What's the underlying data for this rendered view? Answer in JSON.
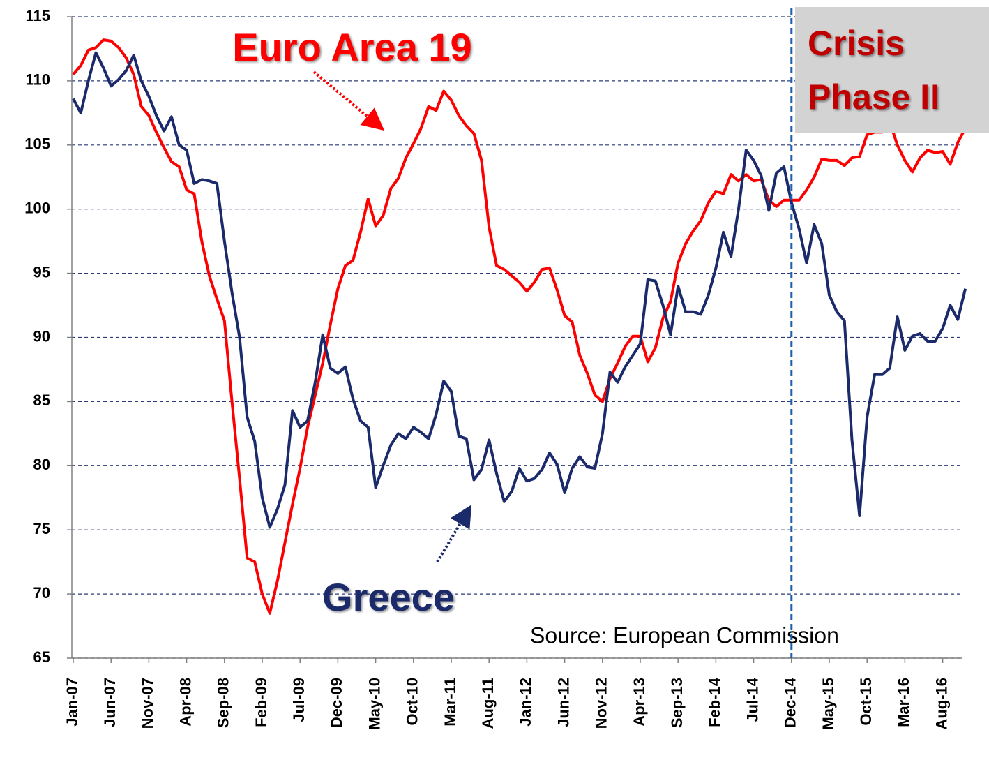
{
  "chart_data": {
    "type": "line",
    "categories": [
      "Jan-07",
      null,
      null,
      null,
      null,
      "Jun-07",
      null,
      null,
      null,
      null,
      "Nov-07",
      null,
      null,
      null,
      null,
      "Apr-08",
      null,
      null,
      null,
      null,
      "Sep-08",
      null,
      null,
      null,
      null,
      "Feb-09",
      null,
      null,
      null,
      null,
      "Jul-09",
      null,
      null,
      null,
      null,
      "Dec-09",
      null,
      null,
      null,
      null,
      "May-10",
      null,
      null,
      null,
      null,
      "Oct-10",
      null,
      null,
      null,
      null,
      "Mar-11",
      null,
      null,
      null,
      null,
      "Aug-11",
      null,
      null,
      null,
      null,
      "Jan-12",
      null,
      null,
      null,
      null,
      "Jun-12",
      null,
      null,
      null,
      null,
      "Nov-12",
      null,
      null,
      null,
      null,
      "Apr-13",
      null,
      null,
      null,
      null,
      "Sep-13",
      null,
      null,
      null,
      null,
      "Feb-14",
      null,
      null,
      null,
      null,
      "Jul-14",
      null,
      null,
      null,
      null,
      "Dec-14",
      null,
      null,
      null,
      null,
      "May-15",
      null,
      null,
      null,
      null,
      "Oct-15",
      null,
      null,
      null,
      null,
      "Mar-16",
      null,
      null,
      null,
      null,
      "Aug-16",
      null,
      null,
      null
    ],
    "series": [
      {
        "name": "Euro Area 19",
        "color": "#ff0000",
        "values": [
          110.5,
          111.2,
          112.4,
          112.6,
          113.2,
          113.1,
          112.6,
          111.8,
          110.5,
          108.0,
          107.3,
          106.0,
          104.8,
          103.7,
          103.3,
          101.5,
          101.2,
          97.5,
          94.8,
          93.0,
          91.3,
          85.0,
          79.0,
          72.8,
          72.5,
          70.0,
          68.5,
          71.0,
          74.0,
          77.0,
          79.8,
          83.0,
          85.5,
          88.0,
          91.0,
          93.8,
          95.6,
          96.0,
          98.2,
          100.8,
          98.7,
          99.5,
          101.6,
          102.4,
          104.0,
          105.1,
          106.3,
          108.0,
          107.7,
          109.2,
          108.5,
          107.3,
          106.5,
          105.9,
          103.8,
          98.6,
          95.6,
          95.3,
          94.8,
          94.3,
          93.6,
          94.3,
          95.3,
          95.4,
          93.7,
          91.7,
          91.2,
          88.6,
          87.2,
          85.5,
          85.0,
          86.8,
          88.0,
          89.3,
          90.1,
          90.1,
          88.1,
          89.2,
          91.5,
          92.8,
          95.8,
          97.3,
          98.3,
          99.1,
          100.5,
          101.4,
          101.2,
          102.7,
          102.2,
          102.7,
          102.2,
          102.3,
          100.7,
          100.2,
          100.7,
          100.7,
          100.7,
          101.5,
          102.5,
          103.9,
          103.8,
          103.8,
          103.4,
          104.0,
          104.1,
          105.8,
          106.0,
          106.0,
          106.8,
          105.0,
          103.8,
          102.9,
          104.0,
          104.6,
          104.4,
          104.5,
          103.5,
          105.2,
          106.3
        ]
      },
      {
        "name": "Greece",
        "color": "#1b2a6b",
        "values": [
          108.6,
          107.5,
          110.0,
          112.2,
          111.0,
          109.6,
          110.1,
          110.8,
          112.0,
          110.0,
          108.8,
          107.3,
          106.1,
          107.2,
          105.0,
          104.6,
          102.0,
          102.3,
          102.2,
          102.0,
          97.5,
          93.5,
          90.0,
          83.8,
          81.9,
          77.5,
          75.2,
          76.6,
          78.5,
          84.3,
          83.0,
          83.5,
          86.5,
          90.2,
          87.6,
          87.2,
          87.7,
          85.2,
          83.5,
          83.0,
          78.3,
          80.0,
          81.6,
          82.5,
          82.1,
          83.0,
          82.6,
          82.1,
          84.0,
          86.6,
          85.8,
          82.3,
          82.1,
          78.9,
          79.7,
          82.0,
          79.4,
          77.2,
          78.0,
          79.8,
          78.8,
          79.0,
          79.7,
          81.0,
          80.1,
          77.9,
          79.8,
          80.7,
          79.9,
          79.8,
          82.5,
          87.3,
          86.5,
          87.7,
          88.6,
          89.5,
          94.5,
          94.4,
          92.5,
          90.2,
          94.0,
          92.0,
          92.0,
          91.8,
          93.3,
          95.4,
          98.2,
          96.3,
          100.0,
          104.6,
          103.8,
          102.6,
          99.9,
          102.8,
          103.3,
          100.5,
          98.5,
          95.8,
          98.8,
          97.3,
          93.3,
          92.0,
          91.3,
          82.0,
          76.1,
          83.8,
          87.1,
          87.1,
          87.6,
          91.6,
          89.0,
          90.1,
          90.3,
          89.7,
          89.7,
          90.7,
          92.5,
          91.4,
          93.8
        ]
      }
    ],
    "ylim": [
      65,
      115
    ],
    "yticks": [
      65,
      70,
      75,
      80,
      85,
      90,
      95,
      100,
      105,
      110,
      115
    ],
    "grid": true,
    "phase_marker": {
      "at": "Dec-14",
      "lines": [
        "Crisis",
        "Phase II"
      ]
    },
    "source": "Source:  European Commission"
  }
}
